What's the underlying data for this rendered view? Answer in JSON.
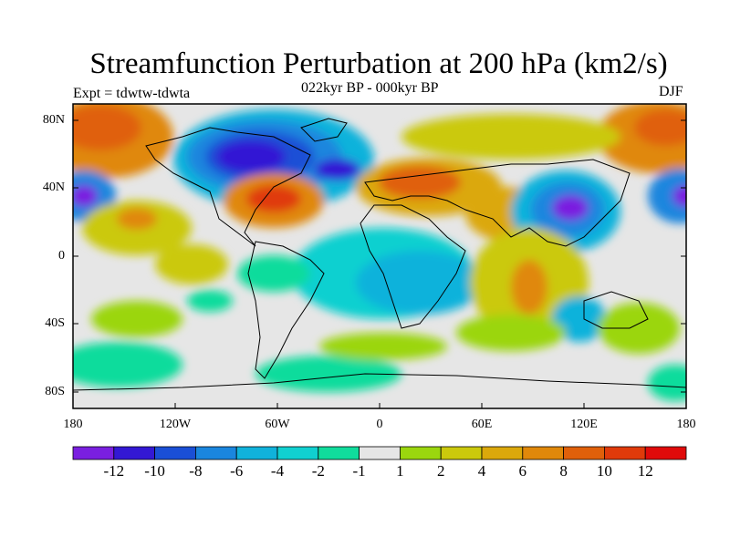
{
  "title": "Streamfunction Perturbation at 200 hPa (km2/s)",
  "subtitle": "022kyr BP - 000kyr BP",
  "experiment": "Expt = tdwtw-tdwta",
  "season": "DJF",
  "lat_labels": [
    "80N",
    "40N",
    "0",
    "40S",
    "80S"
  ],
  "lon_labels": [
    "180",
    "120W",
    "60W",
    "0",
    "60E",
    "120E",
    "180"
  ],
  "colorbar": {
    "colors": [
      "#7a1fe0",
      "#3318d4",
      "#1a4fd6",
      "#1a86de",
      "#10b2db",
      "#10d0d0",
      "#10dc9c",
      "#e6e6e6",
      "#9bd60e",
      "#cbc90c",
      "#dba80b",
      "#e0880a",
      "#e0600a",
      "#e03a0a",
      "#e00a0a"
    ],
    "labels": [
      "-12",
      "-10",
      "-8",
      "-6",
      "-4",
      "-2",
      "-1",
      "1",
      "2",
      "4",
      "6",
      "8",
      "10",
      "12"
    ]
  },
  "chart_data": {
    "type": "heatmap",
    "variable": "Streamfunction Perturbation at 200 hPa (km2/s)",
    "period": "022kyr BP - 000kyr BP",
    "season": "DJF",
    "x_range": [
      -180,
      180
    ],
    "y_range": [
      -90,
      90
    ],
    "levels": [
      -12,
      -10,
      -8,
      -6,
      -4,
      -2,
      -1,
      1,
      2,
      4,
      6,
      8,
      10,
      12
    ]
  }
}
